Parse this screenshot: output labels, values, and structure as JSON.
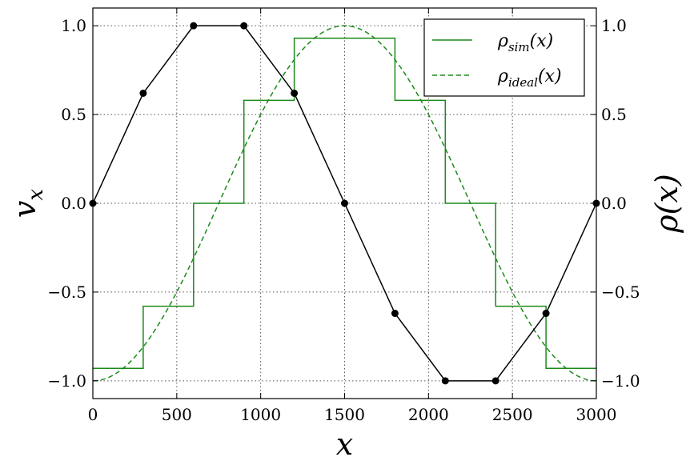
{
  "chart_data": {
    "type": "line",
    "xlabel": "x",
    "ylabel_left": "v_x",
    "ylabel_right": "ρ(x)",
    "xlim": [
      0,
      3000
    ],
    "ylim_left": [
      -1.1,
      1.1
    ],
    "ylim_right": [
      -1.1,
      1.1
    ],
    "x_ticks": [
      "0",
      "500",
      "1000",
      "1500",
      "2000",
      "2500",
      "3000"
    ],
    "y_ticks_left": [
      "−1.0",
      "−0.5",
      "0.0",
      "0.5",
      "1.0"
    ],
    "y_ticks_right": [
      "−1.0",
      "−0.5",
      "0.0",
      "0.5",
      "1.0"
    ],
    "grid": true,
    "legend_position": "upper-right",
    "series": [
      {
        "name": "",
        "axis": "left",
        "style": "line-with-markers",
        "color": "#000000",
        "x": [
          0,
          300,
          600,
          900,
          1200,
          1500,
          1800,
          2100,
          2400,
          2700,
          3000
        ],
        "y": [
          0.0,
          0.62,
          1.0,
          1.0,
          0.62,
          0.0,
          -0.62,
          -1.0,
          -1.0,
          -0.62,
          0.0
        ]
      },
      {
        "name": "ρsim(x)",
        "name_base": "ρ",
        "name_sub": "sim",
        "name_tail": "(x)",
        "axis": "right",
        "style": "steps",
        "color": "#1a8a1a",
        "x_edges": [
          0,
          300,
          600,
          900,
          1200,
          1800,
          2100,
          2400,
          2700,
          3000
        ],
        "levels": [
          -0.93,
          -0.58,
          0.0,
          0.58,
          0.93,
          0.58,
          0.0,
          -0.58,
          -0.93
        ]
      },
      {
        "name": "ρideal(x)",
        "name_base": "ρ",
        "name_sub": "ideal",
        "name_tail": "(x)",
        "axis": "right",
        "style": "dashed",
        "color": "#1a8a1a",
        "function": "-cos(2πx/3000)"
      }
    ]
  }
}
